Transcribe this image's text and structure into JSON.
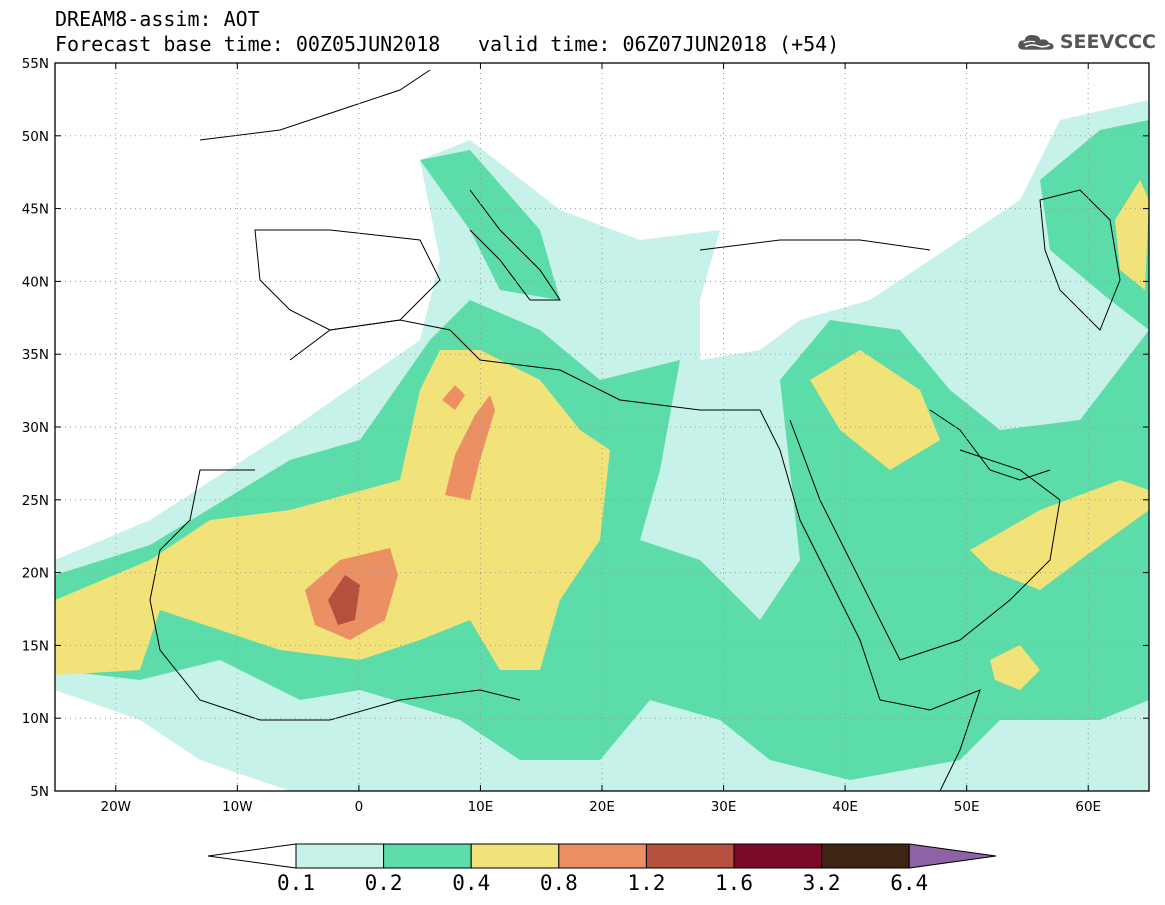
{
  "header": {
    "title": "DREAM8-assim: AOT",
    "base_time": "Forecast base time: 00Z05JUN2018",
    "valid_time": "valid time: 06Z07JUN2018 (+54)"
  },
  "logo": {
    "text": "SEEVCCC",
    "icon": "cloud-icon"
  },
  "map": {
    "lon_range": [
      -25,
      65
    ],
    "lat_range": [
      5,
      55
    ],
    "lon_ticks": [
      {
        "value": -20,
        "label": "20W"
      },
      {
        "value": -10,
        "label": "10W"
      },
      {
        "value": 0,
        "label": "0"
      },
      {
        "value": 10,
        "label": "10E"
      },
      {
        "value": 20,
        "label": "20E"
      },
      {
        "value": 30,
        "label": "30E"
      },
      {
        "value": 40,
        "label": "40E"
      },
      {
        "value": 50,
        "label": "50E"
      },
      {
        "value": 60,
        "label": "60E"
      }
    ],
    "lat_ticks": [
      {
        "value": 5,
        "label": "5N"
      },
      {
        "value": 10,
        "label": "10N"
      },
      {
        "value": 15,
        "label": "15N"
      },
      {
        "value": 20,
        "label": "20N"
      },
      {
        "value": 25,
        "label": "25N"
      },
      {
        "value": 30,
        "label": "30N"
      },
      {
        "value": 35,
        "label": "35N"
      },
      {
        "value": 40,
        "label": "40N"
      },
      {
        "value": 45,
        "label": "45N"
      },
      {
        "value": 50,
        "label": "50N"
      },
      {
        "value": 55,
        "label": "55N"
      }
    ],
    "grid": "dotted"
  },
  "colorbar": {
    "colors": [
      "#c6f2ea",
      "#5bdca8",
      "#f2e27a",
      "#ea9063",
      "#b5503e",
      "#7a0a28",
      "#3e2412"
    ],
    "left_arrow_color": "#ffffff",
    "right_arrow_color": "#8e62a6",
    "labels": [
      "0.1",
      "0.2",
      "0.4",
      "0.8",
      "1.2",
      "1.6",
      "3.2",
      "6.4"
    ]
  },
  "legend_colors": {
    "l1": "#c6f2ea",
    "l2": "#5bdca8",
    "l3": "#f2e27a",
    "l4": "#ea9063",
    "l5": "#b5503e"
  }
}
